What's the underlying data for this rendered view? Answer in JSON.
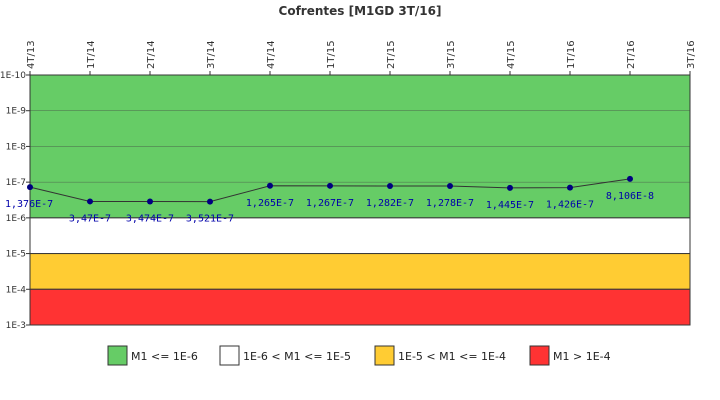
{
  "chart_data": {
    "type": "line",
    "title": "Cofrentes [M1GD 3T/16]",
    "scale": "log",
    "y_axis": "inverted",
    "ylim": [
      1e-10,
      0.001
    ],
    "y_ticks": [
      "1E-10",
      "1E-9",
      "1E-8",
      "1E-7",
      "1E-6",
      "1E-5",
      "1E-4",
      "1E-3"
    ],
    "categories": [
      "4T/13",
      "1T/14",
      "2T/14",
      "3T/14",
      "4T/14",
      "1T/15",
      "2T/15",
      "3T/15",
      "4T/15",
      "1T/16",
      "2T/16",
      "3T/16"
    ],
    "series": [
      {
        "values": [
          1.376e-07,
          3.47e-07,
          3.474e-07,
          3.521e-07,
          1.265e-07,
          1.267e-07,
          1.282e-07,
          1.278e-07,
          1.445e-07,
          1.426e-07,
          8.106e-08,
          null
        ],
        "labels": [
          "1,376E-7",
          "3,47E-7",
          "3,474E-7",
          "3,521E-7",
          "1,265E-7",
          "1,267E-7",
          "1,282E-7",
          "1,278E-7",
          "1,445E-7",
          "1,426E-7",
          "8,106E-8",
          ""
        ],
        "color": "#000080"
      }
    ],
    "bands": [
      {
        "from": 1e-10,
        "to": 1e-06,
        "color": "#66cc66",
        "label": "M1 <= 1E-6"
      },
      {
        "from": 1e-06,
        "to": 1e-05,
        "color": "#ffffff",
        "label": "1E-6 < M1 <= 1E-5"
      },
      {
        "from": 1e-05,
        "to": 0.0001,
        "color": "#ffcc33",
        "label": "1E-5 < M1 <= 1E-4"
      },
      {
        "from": 0.0001,
        "to": 0.001,
        "color": "#ff3333",
        "label": "M1 > 1E-4"
      }
    ],
    "legend_position": "bottom"
  }
}
